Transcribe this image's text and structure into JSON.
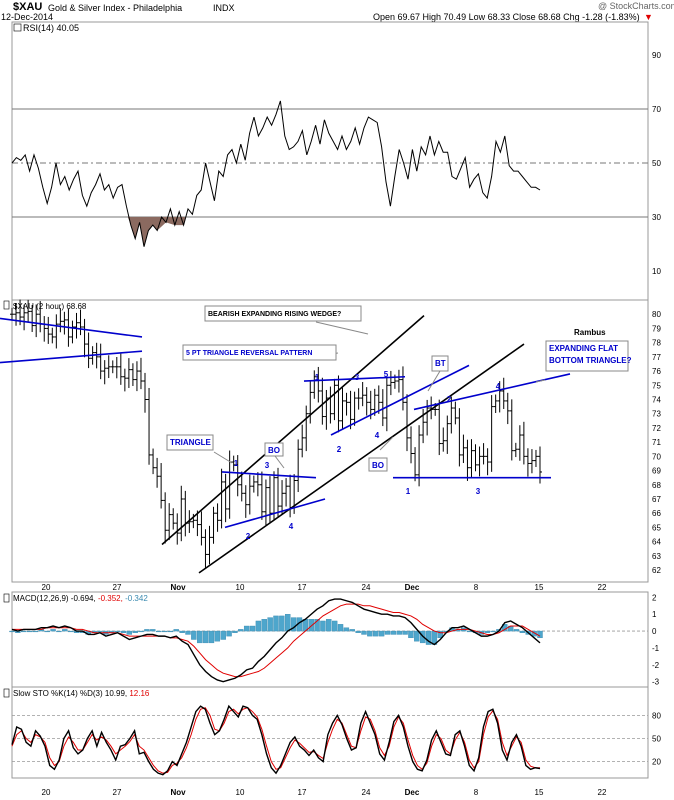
{
  "header": {
    "symbol": "$XAU",
    "name": "Gold & Silver Index - Philadelphia",
    "exchange": "INDX",
    "date": "12-Dec-2014",
    "quote": "Open 69.67  High 70.49  Low 68.33  Close 68.68  Chg -1.28 (-1.83%)",
    "watermark": "@ StockCharts.com"
  },
  "colors": {
    "blue": "#0000cc",
    "red": "#e00000",
    "hist": "#4ea6cc",
    "brown": "#8b6a60",
    "line": "#000000"
  },
  "chart_data": [
    {
      "id": "rsi",
      "type": "line",
      "title": "RSI(14) 40.05",
      "ylim": [
        0,
        100
      ],
      "yticks": [
        10,
        30,
        50,
        70,
        90
      ],
      "levels": [
        30,
        50,
        70
      ],
      "series": [
        {
          "values": [
            50,
            52,
            51,
            53,
            47,
            53,
            48,
            41,
            35,
            41,
            50,
            42,
            45,
            40,
            44,
            47,
            38,
            34,
            39,
            42,
            46,
            40,
            42,
            37,
            41,
            42,
            34,
            27,
            22,
            28,
            19,
            25,
            27,
            25,
            30,
            28,
            33,
            27,
            32,
            27,
            33,
            31,
            38,
            40,
            50,
            43,
            36,
            47,
            45,
            53,
            55,
            50,
            57,
            51,
            61,
            67,
            60,
            63,
            67,
            64,
            68,
            73,
            60,
            55,
            56,
            58,
            62,
            53,
            58,
            64,
            57,
            66,
            61,
            58,
            55,
            60,
            55,
            58,
            63,
            57,
            63,
            67,
            66,
            65,
            56,
            43,
            34,
            45,
            55,
            50,
            44,
            55,
            47,
            56,
            53,
            60,
            53,
            58,
            54,
            54,
            45,
            44,
            48,
            52,
            41,
            44,
            46,
            39,
            37,
            45,
            58,
            54,
            60,
            49,
            47,
            47,
            45,
            43,
            41,
            41,
            40
          ]
        }
      ]
    },
    {
      "id": "price",
      "type": "ohlc",
      "title": "$XAU (2 hour) 68.68",
      "ylim": [
        61.3,
        81
      ],
      "yticks": [
        62,
        63,
        64,
        65,
        66,
        67,
        68,
        69,
        70,
        71,
        72,
        73,
        74,
        75,
        76,
        77,
        78,
        79,
        80
      ],
      "xticks": [
        "20",
        "27",
        "Nov",
        "10",
        "17",
        "24",
        "Dec",
        "8",
        "15",
        "22"
      ],
      "series": [
        {
          "name": "close",
          "values": [
            80.0,
            80.1,
            79.8,
            80.1,
            80.2,
            79.2,
            80.0,
            79.3,
            79.0,
            78.6,
            78.4,
            79.3,
            79.5,
            79.6,
            78.4,
            79.1,
            79.4,
            79.1,
            77.9,
            76.9,
            77.3,
            77.0,
            76.0,
            76.2,
            76.3,
            76.3,
            76.3,
            75.6,
            75.5,
            76.1,
            75.4,
            76.0,
            75.3,
            74.0,
            70.1,
            69.2,
            68.6,
            66.9,
            64.8,
            65.9,
            65.3,
            64.6,
            67.0,
            65.3,
            65.4,
            65.5,
            65.2,
            64.3,
            63.1,
            64.3,
            66.0,
            65.5,
            68.2,
            66.3,
            69.6,
            69.4,
            68.0,
            67.4,
            66.6,
            67.9,
            68.2,
            68.0,
            66.1,
            67.8,
            66.0,
            68.5,
            66.5,
            67.4,
            67.9,
            66.4,
            68.3,
            70.5,
            71.3,
            73.0,
            74.5,
            75.6,
            74.6,
            72.8,
            74.1,
            73.0,
            75.0,
            72.5,
            73.9,
            73.8,
            72.6,
            74.1,
            74.1,
            74.3,
            73.8,
            73.3,
            74.3,
            73.8,
            72.7,
            75.0,
            75.2,
            75.3,
            75.4,
            73.8,
            71.3,
            70.2,
            68.7,
            71.5,
            72.4,
            73.4,
            73.3,
            73.3,
            70.9,
            71.1,
            72.3,
            73.4,
            72.7,
            70.1,
            70.6,
            69.2,
            70.4,
            69.4,
            70.0,
            70.0,
            69.6,
            73.5,
            73.9,
            74.6,
            73.9,
            73.2,
            70.4,
            70.5,
            71.5,
            70.0,
            69.5,
            69.7,
            70.0,
            68.9
          ]
        }
      ],
      "lines": [
        {
          "from": [
            0,
            79.7
          ],
          "to": [
            142,
            78.4
          ]
        },
        {
          "from": [
            0,
            76.6
          ],
          "to": [
            142,
            77.4
          ]
        },
        {
          "from": [
            162,
            63.8
          ],
          "to": [
            424,
            79.9
          ]
        },
        {
          "from": [
            199,
            61.8
          ],
          "to": [
            524,
            77.9
          ]
        },
        {
          "from": [
            222,
            68.9
          ],
          "to": [
            316,
            68.5
          ]
        },
        {
          "from": [
            225,
            65.0
          ],
          "to": [
            325,
            67.0
          ]
        },
        {
          "from": [
            304,
            75.3
          ],
          "to": [
            405,
            75.6
          ]
        },
        {
          "from": [
            331,
            71.5
          ],
          "to": [
            469,
            76.4
          ]
        },
        {
          "from": [
            414,
            73.3
          ],
          "to": [
            570,
            75.8
          ]
        },
        {
          "from": [
            393,
            68.5
          ],
          "to": [
            551,
            68.5
          ]
        }
      ],
      "annotations": [
        {
          "text": "BEARISH EXPANDING RISING WEDGE?",
          "box": true
        },
        {
          "text": "5 PT TRIANGLE REVERSAL PATTERN",
          "box": true,
          "color": "#0000cc"
        },
        {
          "text": "TRIANGLE",
          "box": true,
          "color": "#0000cc"
        },
        {
          "text": "BO",
          "box": true,
          "color": "#0000cc"
        },
        {
          "text": "BO",
          "box": true,
          "color": "#0000cc"
        },
        {
          "text": "BT",
          "box": true,
          "color": "#0000cc"
        },
        {
          "text": "EXPANDING FLAT\nBOTTOM TRIANGLE?",
          "box": true,
          "color": "#0000cc"
        },
        {
          "text": "Rambus",
          "box": false,
          "color": "#000000"
        }
      ],
      "points": [
        {
          "text": "1"
        },
        {
          "text": "2"
        },
        {
          "text": "3"
        },
        {
          "text": "4"
        },
        {
          "text": "1"
        },
        {
          "text": "2"
        },
        {
          "text": "3"
        },
        {
          "text": "4"
        },
        {
          "text": "5"
        },
        {
          "text": "1"
        },
        {
          "text": "2"
        },
        {
          "text": "3"
        },
        {
          "text": "4"
        }
      ]
    },
    {
      "id": "macd",
      "type": "line+histogram",
      "title": "MACD(12,26,9) -0.694, -0.352, -0.342",
      "title_parts": [
        "MACD(12,26,9)",
        "-0.694,",
        "-0.352,",
        "-0.342"
      ],
      "ylim": [
        -3.2,
        2.2
      ],
      "yticks": [
        -3,
        -2,
        -1,
        0,
        1,
        2
      ],
      "series": [
        {
          "name": "MACD",
          "values": [
            0.1,
            0.0,
            0.1,
            0.1,
            0.1,
            0.2,
            0.2,
            0.3,
            0.2,
            0.3,
            0.2,
            0.0,
            0.0,
            -0.2,
            -0.2,
            -0.1,
            -0.3,
            -0.2,
            -0.1,
            -0.3,
            -0.5,
            -0.4,
            -0.3,
            -0.2,
            -0.2,
            -0.3,
            -0.3,
            -0.4,
            -0.3,
            -0.6,
            -0.8,
            -1.4,
            -2.0,
            -2.4,
            -2.7,
            -2.9,
            -3.0,
            -2.9,
            -2.8,
            -2.6,
            -2.3,
            -2.2,
            -1.8,
            -1.5,
            -1.1,
            -0.7,
            -0.4,
            0.0,
            0.2,
            0.5,
            0.7,
            1.0,
            1.3,
            1.5,
            1.8,
            1.9,
            1.9,
            1.8,
            1.7,
            1.5,
            1.3,
            1.2,
            1.1,
            1.0,
            1.0,
            0.9,
            0.9,
            0.8,
            0.5,
            0.1,
            -0.3,
            -0.6,
            -0.8,
            -0.5,
            -0.1,
            0.2,
            0.2,
            0.3,
            0.1,
            -0.1,
            -0.3,
            -0.3,
            -0.2,
            0.0,
            0.5,
            0.6,
            0.4,
            0.2,
            -0.1,
            -0.4,
            -0.7
          ]
        },
        {
          "name": "Signal",
          "values": [
            0.1,
            0.1,
            0.1,
            0.1,
            0.1,
            0.1,
            0.2,
            0.2,
            0.2,
            0.2,
            0.2,
            0.1,
            0.1,
            0.0,
            -0.1,
            -0.1,
            -0.1,
            -0.1,
            -0.1,
            -0.2,
            -0.3,
            -0.3,
            -0.3,
            -0.3,
            -0.3,
            -0.3,
            -0.3,
            -0.4,
            -0.4,
            -0.5,
            -0.6,
            -0.9,
            -1.3,
            -1.7,
            -2.0,
            -2.3,
            -2.5,
            -2.6,
            -2.7,
            -2.7,
            -2.6,
            -2.5,
            -2.4,
            -2.2,
            -1.9,
            -1.6,
            -1.3,
            -1.0,
            -0.6,
            -0.3,
            0.0,
            0.3,
            0.6,
            0.9,
            1.1,
            1.3,
            1.5,
            1.6,
            1.6,
            1.6,
            1.5,
            1.5,
            1.4,
            1.3,
            1.2,
            1.1,
            1.1,
            1.0,
            0.9,
            0.7,
            0.4,
            0.2,
            0.0,
            -0.1,
            -0.1,
            0.0,
            0.1,
            0.1,
            0.1,
            0.0,
            -0.1,
            -0.2,
            -0.2,
            -0.1,
            0.1,
            0.3,
            0.3,
            0.3,
            0.1,
            -0.1,
            -0.3
          ]
        }
      ]
    },
    {
      "id": "sto",
      "type": "line",
      "title": "Slow STO %K(14) %D(3) 10.99, 12.16",
      "title_parts": [
        "Slow STO %K(14) %D(3)",
        "10.99,",
        "12.16"
      ],
      "ylim": [
        0,
        100
      ],
      "yticks": [
        20,
        50,
        80
      ],
      "levels": [
        20,
        50,
        80
      ],
      "series": [
        {
          "name": "%K",
          "values": [
            42,
            65,
            62,
            45,
            40,
            60,
            53,
            40,
            15,
            10,
            22,
            50,
            60,
            38,
            30,
            35,
            50,
            60,
            40,
            58,
            45,
            35,
            22,
            40,
            42,
            50,
            60,
            30,
            32,
            20,
            10,
            5,
            3,
            8,
            20,
            15,
            30,
            45,
            65,
            85,
            92,
            88,
            70,
            55,
            60,
            75,
            92,
            85,
            78,
            92,
            90,
            80,
            75,
            55,
            30,
            12,
            5,
            15,
            30,
            45,
            52,
            40,
            35,
            28,
            35,
            25,
            20,
            55,
            70,
            80,
            68,
            50,
            35,
            38,
            70,
            85,
            70,
            55,
            30,
            22,
            45,
            72,
            80,
            65,
            40,
            20,
            10,
            8,
            22,
            48,
            60,
            45,
            30,
            28,
            55,
            60,
            40,
            15,
            8,
            25,
            65,
            85,
            88,
            70,
            35,
            22,
            45,
            55,
            40,
            15,
            10,
            12,
            11
          ]
        },
        {
          "name": "%D",
          "values": [
            40,
            55,
            60,
            50,
            45,
            55,
            52,
            45,
            25,
            15,
            20,
            40,
            52,
            45,
            35,
            35,
            45,
            55,
            48,
            52,
            48,
            40,
            30,
            35,
            40,
            46,
            55,
            40,
            35,
            25,
            15,
            8,
            5,
            6,
            15,
            18,
            25,
            38,
            55,
            75,
            88,
            90,
            80,
            62,
            60,
            70,
            85,
            88,
            82,
            88,
            90,
            85,
            78,
            62,
            40,
            20,
            10,
            12,
            25,
            38,
            48,
            44,
            38,
            32,
            33,
            28,
            24,
            45,
            62,
            75,
            70,
            55,
            40,
            38,
            60,
            78,
            75,
            60,
            38,
            28,
            40,
            65,
            78,
            70,
            48,
            28,
            15,
            10,
            18,
            40,
            55,
            50,
            35,
            30,
            48,
            58,
            45,
            22,
            12,
            20,
            55,
            78,
            86,
            75,
            45,
            28,
            40,
            52,
            45,
            22,
            14,
            12,
            12
          ]
        }
      ]
    }
  ]
}
